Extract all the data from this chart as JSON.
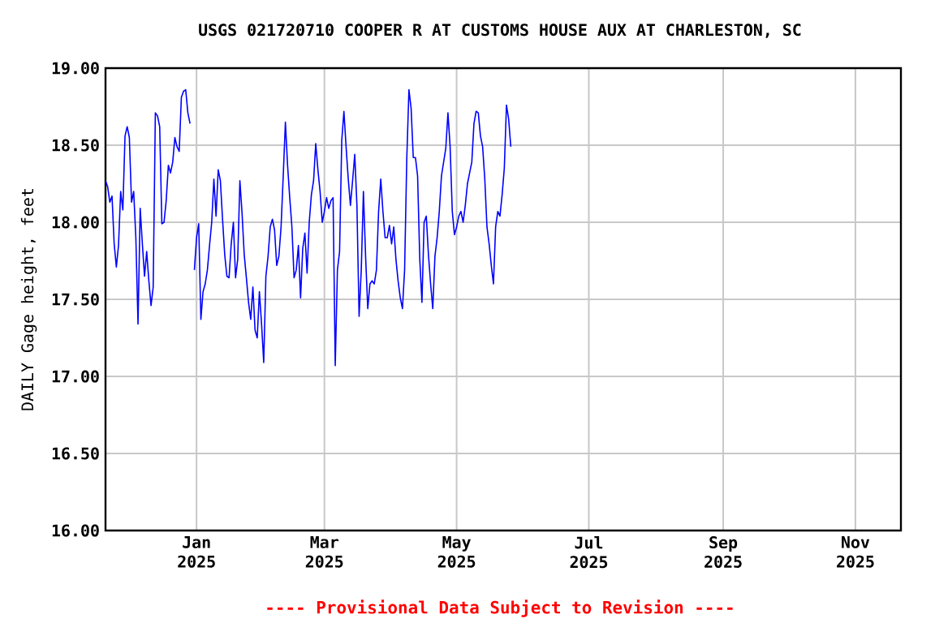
{
  "chart_data": {
    "type": "line",
    "title": "USGS 021720710 COOPER R AT CUSTOMS HOUSE AUX AT CHARLESTON, SC",
    "ylabel": "DAILY Gage height, feet",
    "annotations": [
      "---- Provisional Data Subject to Revision ----"
    ],
    "x": [
      "2024-11-20",
      "2024-11-21",
      "2024-11-22",
      "2024-11-23",
      "2024-11-24",
      "2024-11-25",
      "2024-11-26",
      "2024-11-27",
      "2024-11-28",
      "2024-11-29",
      "2024-11-30",
      "2024-12-01",
      "2024-12-02",
      "2024-12-03",
      "2024-12-04",
      "2024-12-05",
      "2024-12-06",
      "2024-12-07",
      "2024-12-08",
      "2024-12-09",
      "2024-12-10",
      "2024-12-11",
      "2024-12-12",
      "2024-12-13",
      "2024-12-14",
      "2024-12-15",
      "2024-12-16",
      "2024-12-17",
      "2024-12-18",
      "2024-12-19",
      "2024-12-20",
      "2024-12-21",
      "2024-12-22",
      "2024-12-23",
      "2024-12-24",
      "2024-12-25",
      "2024-12-26",
      "2024-12-27",
      "2024-12-28",
      "2024-12-29",
      "2024-12-30",
      "2024-12-31",
      "2025-01-01",
      "2025-01-02",
      "2025-01-03",
      "2025-01-04",
      "2025-01-05",
      "2025-01-06",
      "2025-01-07",
      "2025-01-08",
      "2025-01-09",
      "2025-01-10",
      "2025-01-11",
      "2025-01-12",
      "2025-01-13",
      "2025-01-14",
      "2025-01-15",
      "2025-01-16",
      "2025-01-17",
      "2025-01-18",
      "2025-01-19",
      "2025-01-20",
      "2025-01-21",
      "2025-01-22",
      "2025-01-23",
      "2025-01-24",
      "2025-01-25",
      "2025-01-26",
      "2025-01-27",
      "2025-01-28",
      "2025-01-29",
      "2025-01-30",
      "2025-01-31",
      "2025-02-01",
      "2025-02-02",
      "2025-02-03",
      "2025-02-04",
      "2025-02-05",
      "2025-02-06",
      "2025-02-07",
      "2025-02-08",
      "2025-02-09",
      "2025-02-10",
      "2025-02-11",
      "2025-02-12",
      "2025-02-13",
      "2025-02-14",
      "2025-02-15",
      "2025-02-16",
      "2025-02-17",
      "2025-02-18",
      "2025-02-19",
      "2025-02-20",
      "2025-02-21",
      "2025-02-22",
      "2025-02-23",
      "2025-02-24",
      "2025-02-25",
      "2025-02-26",
      "2025-02-27",
      "2025-02-28",
      "2025-03-01",
      "2025-03-02",
      "2025-03-03",
      "2025-03-04",
      "2025-03-05",
      "2025-03-06",
      "2025-03-07",
      "2025-03-08",
      "2025-03-09",
      "2025-03-10",
      "2025-03-11",
      "2025-03-12",
      "2025-03-13",
      "2025-03-14",
      "2025-03-15",
      "2025-03-16",
      "2025-03-17",
      "2025-03-18",
      "2025-03-19",
      "2025-03-20",
      "2025-03-21",
      "2025-03-22",
      "2025-03-23",
      "2025-03-24",
      "2025-03-25",
      "2025-03-26",
      "2025-03-27",
      "2025-03-28",
      "2025-03-29",
      "2025-03-30",
      "2025-03-31",
      "2025-04-01",
      "2025-04-02",
      "2025-04-03",
      "2025-04-04",
      "2025-04-05",
      "2025-04-06",
      "2025-04-07",
      "2025-04-08",
      "2025-04-09",
      "2025-04-10",
      "2025-04-11",
      "2025-04-12",
      "2025-04-13",
      "2025-04-14",
      "2025-04-15",
      "2025-04-16",
      "2025-04-17",
      "2025-04-18",
      "2025-04-19",
      "2025-04-20",
      "2025-04-21",
      "2025-04-22",
      "2025-04-23",
      "2025-04-24",
      "2025-04-25",
      "2025-04-26",
      "2025-04-27",
      "2025-04-28",
      "2025-04-29",
      "2025-04-30",
      "2025-05-01",
      "2025-05-02",
      "2025-05-03",
      "2025-05-04",
      "2025-05-05",
      "2025-05-06",
      "2025-05-07",
      "2025-05-08",
      "2025-05-09",
      "2025-05-10",
      "2025-05-11",
      "2025-05-12",
      "2025-05-13",
      "2025-05-14",
      "2025-05-15",
      "2025-05-16",
      "2025-05-17",
      "2025-05-18",
      "2025-05-19",
      "2025-05-20",
      "2025-05-21",
      "2025-05-22",
      "2025-05-23",
      "2025-05-24",
      "2025-05-25",
      "2025-05-26"
    ],
    "series": [
      {
        "color": "#0000ff",
        "values": [
          18.27,
          18.23,
          18.13,
          18.17,
          17.86,
          17.71,
          17.85,
          18.2,
          18.08,
          18.56,
          18.62,
          18.55,
          18.13,
          18.2,
          17.9,
          17.34,
          18.09,
          17.86,
          17.65,
          17.81,
          17.62,
          17.46,
          17.58,
          18.71,
          18.69,
          18.62,
          17.99,
          18.0,
          18.14,
          18.37,
          18.32,
          18.39,
          18.55,
          18.49,
          18.46,
          18.81,
          18.85,
          18.86,
          18.71,
          18.64,
          null,
          17.69,
          17.9,
          17.99,
          17.37,
          17.55,
          17.6,
          17.69,
          17.85,
          18.0,
          18.28,
          18.04,
          18.34,
          18.27,
          18.02,
          17.79,
          17.65,
          17.64,
          17.86,
          18.0,
          17.64,
          17.76,
          18.27,
          18.06,
          17.79,
          17.64,
          17.48,
          17.37,
          17.58,
          17.3,
          17.25,
          17.55,
          17.34,
          17.09,
          17.65,
          17.78,
          17.97,
          18.02,
          17.95,
          17.72,
          17.78,
          17.97,
          18.3,
          18.65,
          18.37,
          18.16,
          17.97,
          17.64,
          17.69,
          17.85,
          17.51,
          17.83,
          17.93,
          17.67,
          18.0,
          18.18,
          18.27,
          18.51,
          18.34,
          18.2,
          18.0,
          18.07,
          18.16,
          18.09,
          18.14,
          18.16,
          17.07,
          17.69,
          17.81,
          18.53,
          18.72,
          18.49,
          18.28,
          18.11,
          18.27,
          18.44,
          18.11,
          17.39,
          17.69,
          18.2,
          17.78,
          17.44,
          17.6,
          17.62,
          17.6,
          17.69,
          18.07,
          18.28,
          18.07,
          17.9,
          17.9,
          17.98,
          17.86,
          17.97,
          17.76,
          17.62,
          17.51,
          17.44,
          17.69,
          18.41,
          18.86,
          18.74,
          18.42,
          18.42,
          18.3,
          17.76,
          17.48,
          18.0,
          18.04,
          17.79,
          17.6,
          17.44,
          17.78,
          17.9,
          18.07,
          18.3,
          18.39,
          18.48,
          18.71,
          18.49,
          18.07,
          17.92,
          17.97,
          18.04,
          18.07,
          18.0,
          18.11,
          18.25,
          18.32,
          18.39,
          18.64,
          18.72,
          18.71,
          18.56,
          18.49,
          18.28,
          17.97,
          17.86,
          17.72,
          17.6,
          17.97,
          18.07,
          18.04,
          18.18,
          18.35,
          18.76,
          18.67,
          18.49
        ]
      }
    ],
    "xlim": [
      "2024-11-20",
      "2025-11-22"
    ],
    "xticks": [
      {
        "value": "2025-01-01",
        "label": "Jan 2025"
      },
      {
        "value": "2025-03-01",
        "label": "Mar 2025"
      },
      {
        "value": "2025-05-01",
        "label": "May 2025"
      },
      {
        "value": "2025-07-01",
        "label": "Jul 2025"
      },
      {
        "value": "2025-09-01",
        "label": "Sep 2025"
      },
      {
        "value": "2025-11-01",
        "label": "Nov 2025"
      }
    ],
    "ylim": [
      16,
      19
    ],
    "yticks": [
      {
        "value": 16,
        "label": "16.00"
      },
      {
        "value": 16.5,
        "label": "16.50"
      },
      {
        "value": 17,
        "label": "17.00"
      },
      {
        "value": 17.5,
        "label": "17.50"
      },
      {
        "value": 18,
        "label": "18.00"
      },
      {
        "value": 18.5,
        "label": "18.50"
      },
      {
        "value": 19,
        "label": "19.00"
      }
    ],
    "grid": true,
    "marker": "none",
    "line_style": "solid"
  }
}
